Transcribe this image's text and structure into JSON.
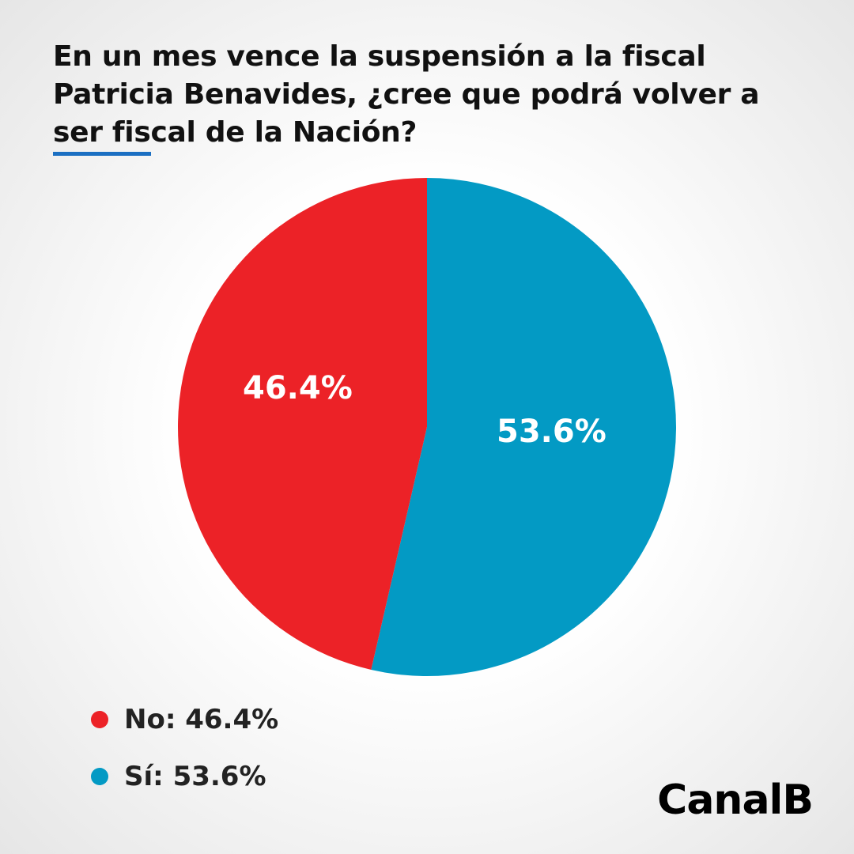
{
  "title": "En un mes vence la suspensión a la fiscal Patricia Benavides, ¿cree que podrá volver a ser fiscal de la Nación?",
  "brand": "CanalB",
  "chart_data": {
    "type": "pie",
    "title": "En un mes vence la suspensión a la fiscal Patricia Benavides, ¿cree que podrá volver a ser fiscal de la Nación?",
    "categories": [
      "Sí",
      "No"
    ],
    "values": [
      53.6,
      46.4
    ],
    "colors": [
      "#039AC4",
      "#EC2227"
    ],
    "data_labels": [
      "53.6%",
      "46.4%"
    ],
    "legend": [
      {
        "label": "No: 46.4%",
        "color": "#EC2227"
      },
      {
        "label": "Sí: 53.6%",
        "color": "#039AC4"
      }
    ],
    "legend_placement": "bottom-left"
  }
}
